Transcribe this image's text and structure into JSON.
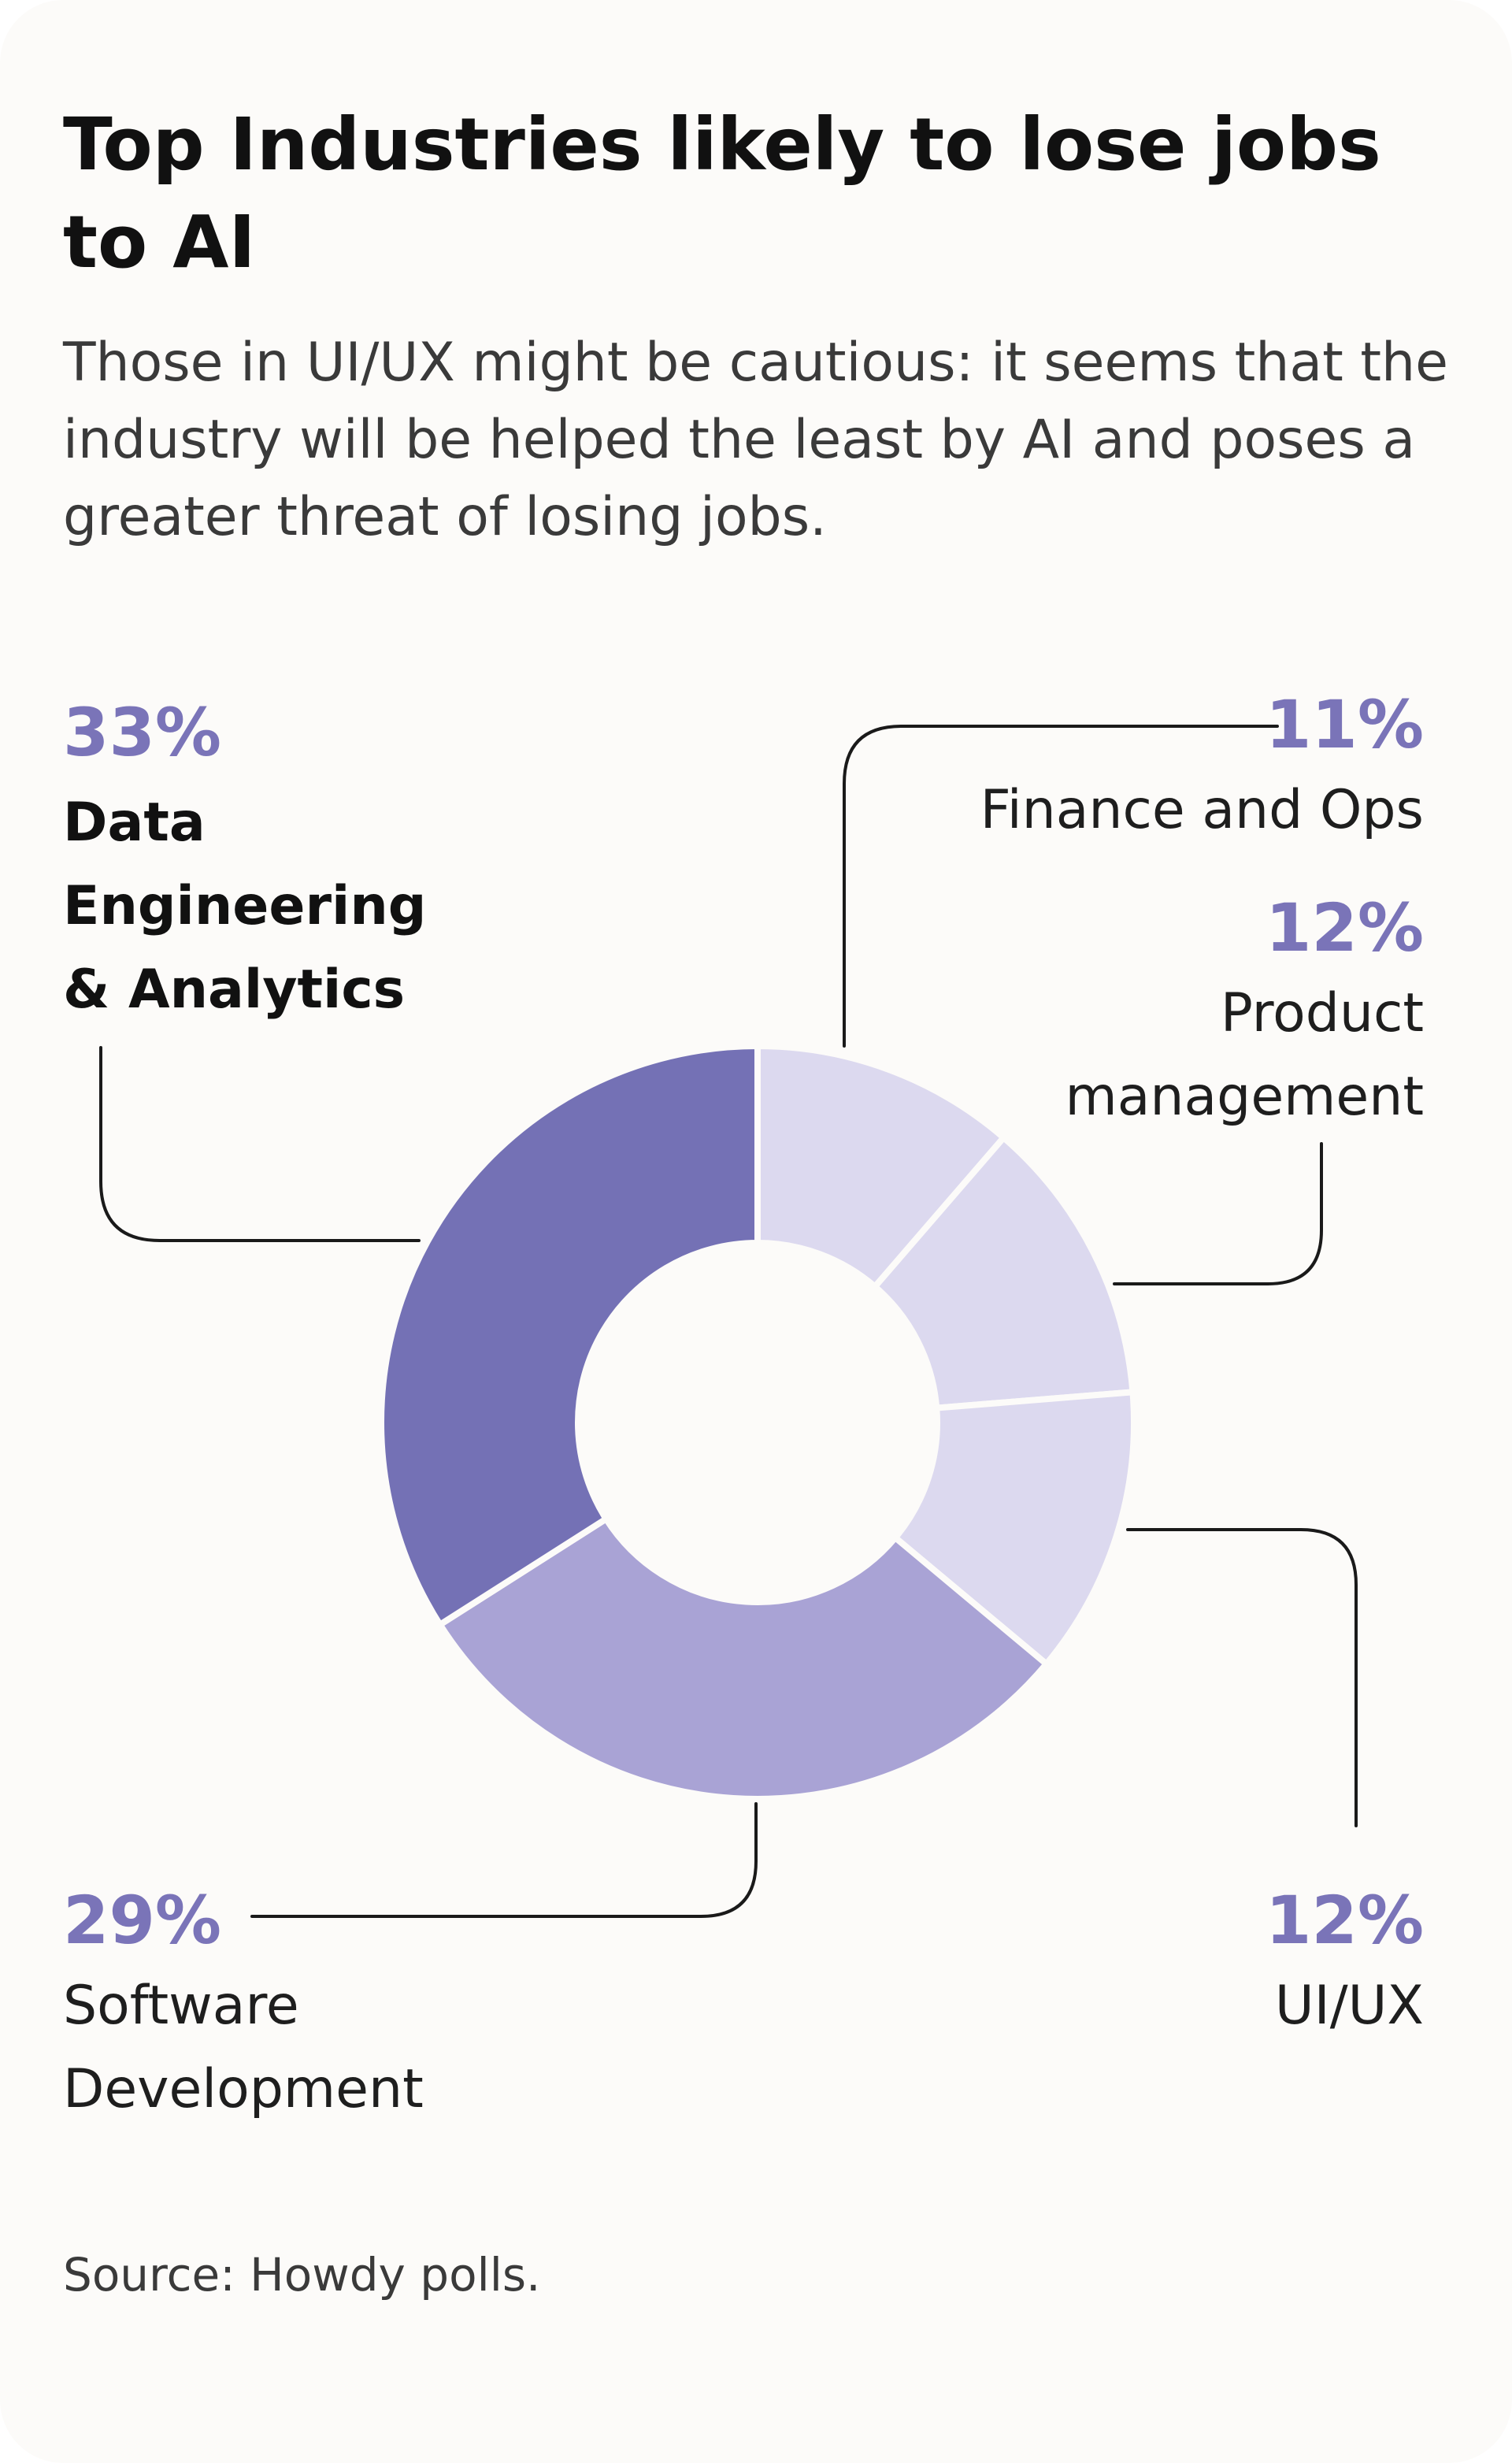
{
  "title": "Top Industries likely to lose jobs to AI",
  "subtitle": "Those in UI/UX might be cautious: it seems that the industry will be helped the least by AI and poses a greater threat of losing jobs.",
  "source": "Source: Howdy polls.",
  "chart_data": {
    "type": "pie",
    "variant": "donut",
    "unit": "%",
    "categories": [
      "Finance and Ops",
      "Product management",
      "UI/UX",
      "Software Development",
      "Data Engineering & Analytics"
    ],
    "values": [
      11,
      12,
      12,
      29,
      33
    ],
    "value_labels": [
      "11%",
      "12%",
      "12%",
      "29%",
      "33%"
    ],
    "colors": [
      "#dcd9ef",
      "#dcd9ef",
      "#dcd9ef",
      "#a9a3d5",
      "#7471b5"
    ],
    "start_angle": "12 o'clock",
    "direction": "clockwise"
  }
}
